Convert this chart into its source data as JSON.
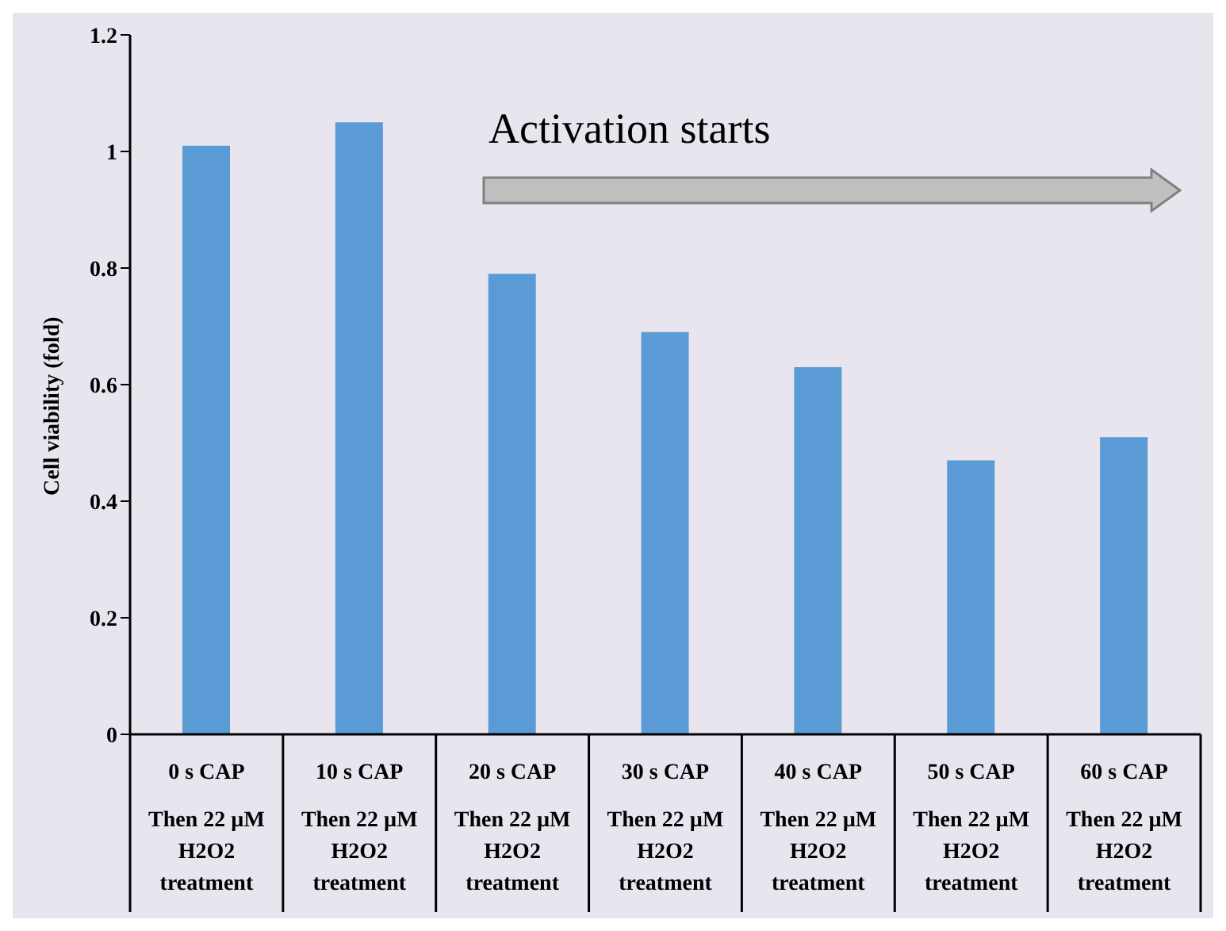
{
  "chart_data": {
    "type": "bar",
    "categories": [
      "0 s CAP\nThen 22 µM\nH2O2\ntreatment",
      "10 s CAP\nThen 22 µM\nH2O2\ntreatment",
      "20 s CAP\nThen 22 µM\nH2O2\ntreatment",
      "30 s CAP\nThen 22 µM\nH2O2\ntreatment",
      "40 s CAP\nThen 22 µM\nH2O2\ntreatment",
      "50 s CAP\nThen 22 µM\nH2O2\ntreatment",
      "60 s CAP\nThen 22 µM\nH2O2\ntreatment"
    ],
    "values": [
      1.01,
      1.05,
      0.79,
      0.69,
      0.63,
      0.47,
      0.51
    ],
    "color": "#5b9bd5",
    "ylabel": "Cell viability (fold)",
    "ylim": [
      0,
      1.2
    ],
    "yticks": [
      0,
      0.2,
      0.4,
      0.6,
      0.8,
      1,
      1.2
    ],
    "annotations": [
      "Activation starts"
    ]
  }
}
